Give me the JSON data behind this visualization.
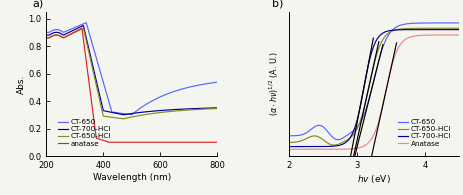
{
  "panel_a": {
    "xlabel": "Wavelength (nm)",
    "ylabel": "Abs.",
    "xlim": [
      200,
      800
    ],
    "ylim": [
      0.0,
      1.05
    ],
    "colors": {
      "CT-650": "#5566ff",
      "CT-700-HCl": "#000099",
      "CT-650-HCl": "#888822",
      "anatase": "#dd2222"
    }
  },
  "panel_b": {
    "xlabel": "hv (eV)",
    "ylabel": "(α·hν)^1/2 (A. U.)",
    "xlim": [
      2.0,
      4.5
    ],
    "colors": {
      "CT-650": "#5566ff",
      "CT-650-HCl": "#888822",
      "CT-700-HCl": "#000099",
      "Anatase": "#ee8888"
    }
  },
  "background": "#f5f5f0",
  "label_fontsize": 6.5,
  "tick_fontsize": 6,
  "legend_fontsize": 5.2
}
